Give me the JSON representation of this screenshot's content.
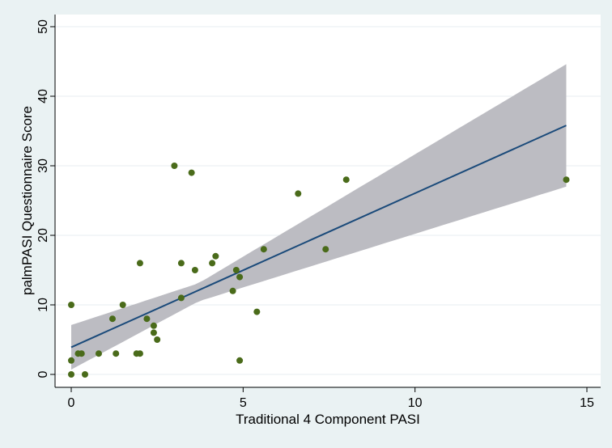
{
  "chart_data": {
    "type": "scatter",
    "title": "",
    "xlabel": "Traditional 4 Component PASI",
    "ylabel": "palmPASI Questionnaire Score",
    "xlim": [
      -0.3,
      15.2
    ],
    "ylim": [
      -1,
      51
    ],
    "xticks": [
      0,
      5,
      10,
      15
    ],
    "yticks": [
      0,
      10,
      20,
      30,
      40,
      50
    ],
    "grid": "horizontal",
    "legend": "none",
    "points": [
      {
        "x": 0.0,
        "y": 10
      },
      {
        "x": 0.0,
        "y": 2
      },
      {
        "x": 0.0,
        "y": 0
      },
      {
        "x": 0.2,
        "y": 3
      },
      {
        "x": 0.3,
        "y": 3
      },
      {
        "x": 0.4,
        "y": 0
      },
      {
        "x": 0.8,
        "y": 3
      },
      {
        "x": 1.2,
        "y": 8
      },
      {
        "x": 1.3,
        "y": 3
      },
      {
        "x": 1.5,
        "y": 10
      },
      {
        "x": 1.9,
        "y": 3
      },
      {
        "x": 2.0,
        "y": 3
      },
      {
        "x": 2.0,
        "y": 16
      },
      {
        "x": 2.2,
        "y": 8
      },
      {
        "x": 2.4,
        "y": 7
      },
      {
        "x": 2.4,
        "y": 6
      },
      {
        "x": 2.5,
        "y": 5
      },
      {
        "x": 3.0,
        "y": 30
      },
      {
        "x": 3.2,
        "y": 16
      },
      {
        "x": 3.2,
        "y": 11
      },
      {
        "x": 3.5,
        "y": 29
      },
      {
        "x": 3.6,
        "y": 15
      },
      {
        "x": 4.1,
        "y": 16
      },
      {
        "x": 4.2,
        "y": 17
      },
      {
        "x": 4.7,
        "y": 12
      },
      {
        "x": 4.8,
        "y": 15
      },
      {
        "x": 4.9,
        "y": 14
      },
      {
        "x": 4.9,
        "y": 2
      },
      {
        "x": 5.4,
        "y": 9
      },
      {
        "x": 5.6,
        "y": 18
      },
      {
        "x": 6.6,
        "y": 26
      },
      {
        "x": 7.4,
        "y": 18
      },
      {
        "x": 8.0,
        "y": 28
      },
      {
        "x": 14.4,
        "y": 28
      }
    ],
    "fit_line": {
      "x": [
        0,
        14.4
      ],
      "y": [
        3.9,
        35.8
      ]
    },
    "confidence_band": {
      "x": [
        0,
        3.7,
        14.4
      ],
      "lower": [
        0.7,
        10.5,
        27.0
      ],
      "upper": [
        7.1,
        13.1,
        44.6
      ]
    },
    "colors": {
      "points": "#4a6b1a",
      "fit_line": "#1a4a7a",
      "band": "#bcbcc2",
      "grid": "#e7eef0",
      "plot_bg": "#ffffff",
      "page_bg": "#eaf2f3"
    }
  }
}
